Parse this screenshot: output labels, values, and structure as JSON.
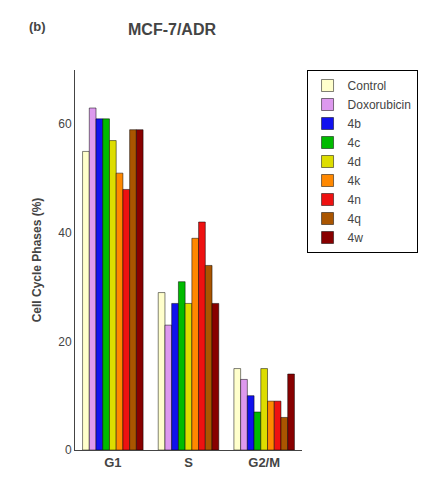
{
  "chart_data": {
    "type": "bar",
    "title": "MCF-7/ADR",
    "y_label": "Cell Cycle Phases (%)",
    "categories": [
      "G1",
      "S",
      "G2/M"
    ],
    "series": [
      {
        "name": "Control",
        "color": "#FFFFCC",
        "values": [
          55,
          29,
          15
        ]
      },
      {
        "name": "Doxorubicin",
        "color": "#DD99EE",
        "values": [
          63,
          23,
          13
        ]
      },
      {
        "name": "4b",
        "color": "#1111EE",
        "values": [
          61,
          27,
          10
        ]
      },
      {
        "name": "4c",
        "color": "#00BB00",
        "values": [
          61,
          31,
          7
        ]
      },
      {
        "name": "4d",
        "color": "#DDDD00",
        "values": [
          57,
          27,
          15
        ]
      },
      {
        "name": "4k",
        "color": "#FF8800",
        "values": [
          51,
          39,
          9
        ]
      },
      {
        "name": "4n",
        "color": "#EE1111",
        "values": [
          48,
          42,
          9
        ]
      },
      {
        "name": "4q",
        "color": "#AA5500",
        "values": [
          59,
          34,
          6
        ]
      },
      {
        "name": "4w",
        "color": "#880000",
        "values": [
          59,
          27,
          14
        ]
      }
    ],
    "ylim": [
      0,
      70
    ],
    "yticks": [
      0,
      20,
      40,
      60
    ],
    "grid": false,
    "legend": "right",
    "annotations": [
      {
        "text": "(b)"
      }
    ]
  }
}
